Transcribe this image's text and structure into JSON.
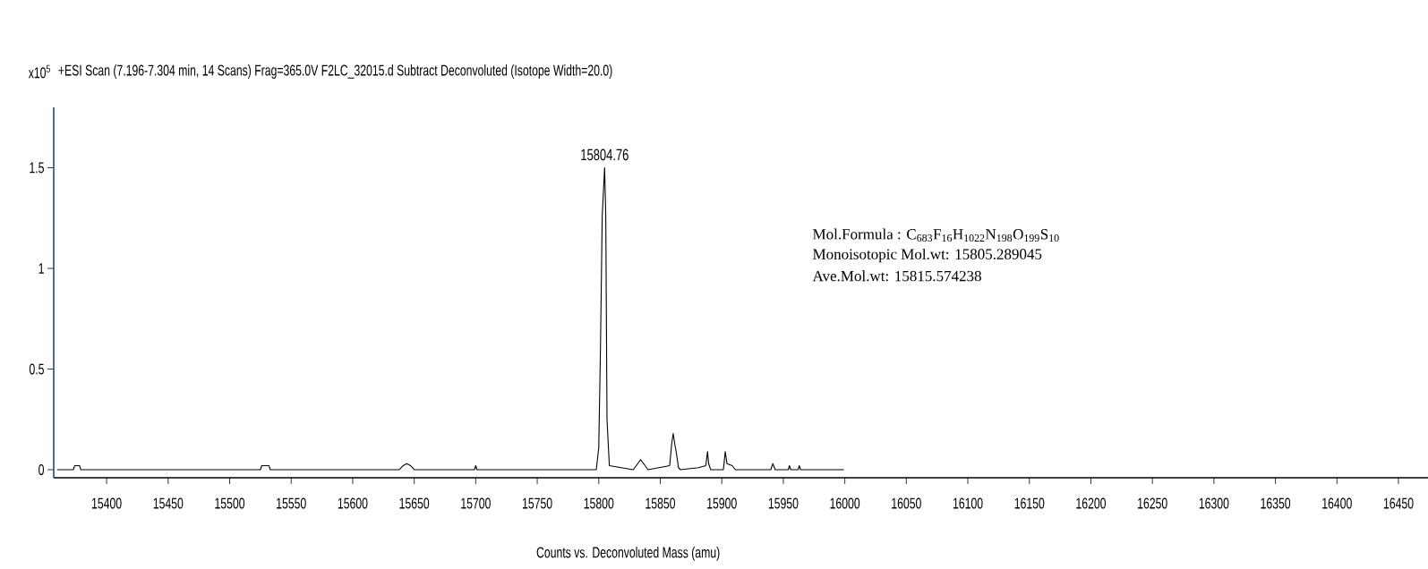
{
  "chart_data": {
    "type": "line",
    "title": "+ESI Scan (7.196-7.304 min, 14 Scans) Frag=365.0V F2LC_32015.d  Subtract Deconvoluted (Isotope Width=20.0)",
    "xlabel": "Counts vs. Deconvoluted Mass (amu)",
    "ylabel": "x10$^{5}$",
    "xlim": [
      15357,
      16474
    ],
    "ylim": [
      -0.04,
      1.8
    ],
    "xticks": [
      15400,
      15450,
      15500,
      15550,
      15600,
      15650,
      15700,
      15750,
      15800,
      15850,
      15900,
      15950,
      16000,
      16050,
      16100,
      16150,
      16200,
      16250,
      16300,
      16350,
      16400,
      16450
    ],
    "yticks": [
      0,
      0.5,
      1,
      1.5
    ],
    "marker": "none",
    "series": [
      {
        "color": "#000000",
        "x": [
          15360,
          15373,
          15374,
          15378,
          15379,
          15525,
          15526,
          15532,
          15533,
          15638,
          15641,
          15644,
          15647,
          15650,
          15699,
          15700,
          15701,
          15798,
          15800,
          15801.4,
          15802.8,
          15804.76,
          15805.7,
          15806.7,
          15808.6,
          15828,
          15831.7,
          15834,
          15836.5,
          15840,
          15857.6,
          15859.3,
          15860.5,
          15861.7,
          15862.9,
          15864.8,
          15866.5,
          15881,
          15887,
          15888.4,
          15889.3,
          15891,
          15901.3,
          15902.8,
          15904.2,
          15908.5,
          15911,
          15939.8,
          15941.5,
          15943.4,
          15954,
          15955,
          15956,
          15962,
          15963,
          15964,
          15999
        ],
        "values": [
          0,
          0,
          0.02,
          0.02,
          0,
          0,
          0.02,
          0.02,
          0,
          0,
          0.02,
          0.03,
          0.02,
          0,
          0,
          0.02,
          0,
          0,
          0.11,
          0.61,
          1.26,
          1.5,
          1.26,
          0.25,
          0.02,
          0,
          0.03,
          0.05,
          0.03,
          0,
          0.02,
          0.13,
          0.18,
          0.13,
          0.09,
          0.01,
          0,
          0.01,
          0.02,
          0.09,
          0.03,
          0,
          0,
          0.09,
          0.03,
          0.02,
          0,
          0,
          0.03,
          0,
          0,
          0.02,
          0,
          0,
          0.02,
          0,
          0
        ]
      }
    ],
    "annotations": [
      {
        "text": "15804.76",
        "x": 15804.76,
        "y": 1.5
      },
      "Mol.Formula : C$_{683}$F$_{16}$H$_{1022}$N$_{198}$O$_{199}$S$_{10}$",
      "Monoisotopic Mol.wt: 15805.289045",
      "Ave.Mol.wt:  15815.574238"
    ]
  }
}
